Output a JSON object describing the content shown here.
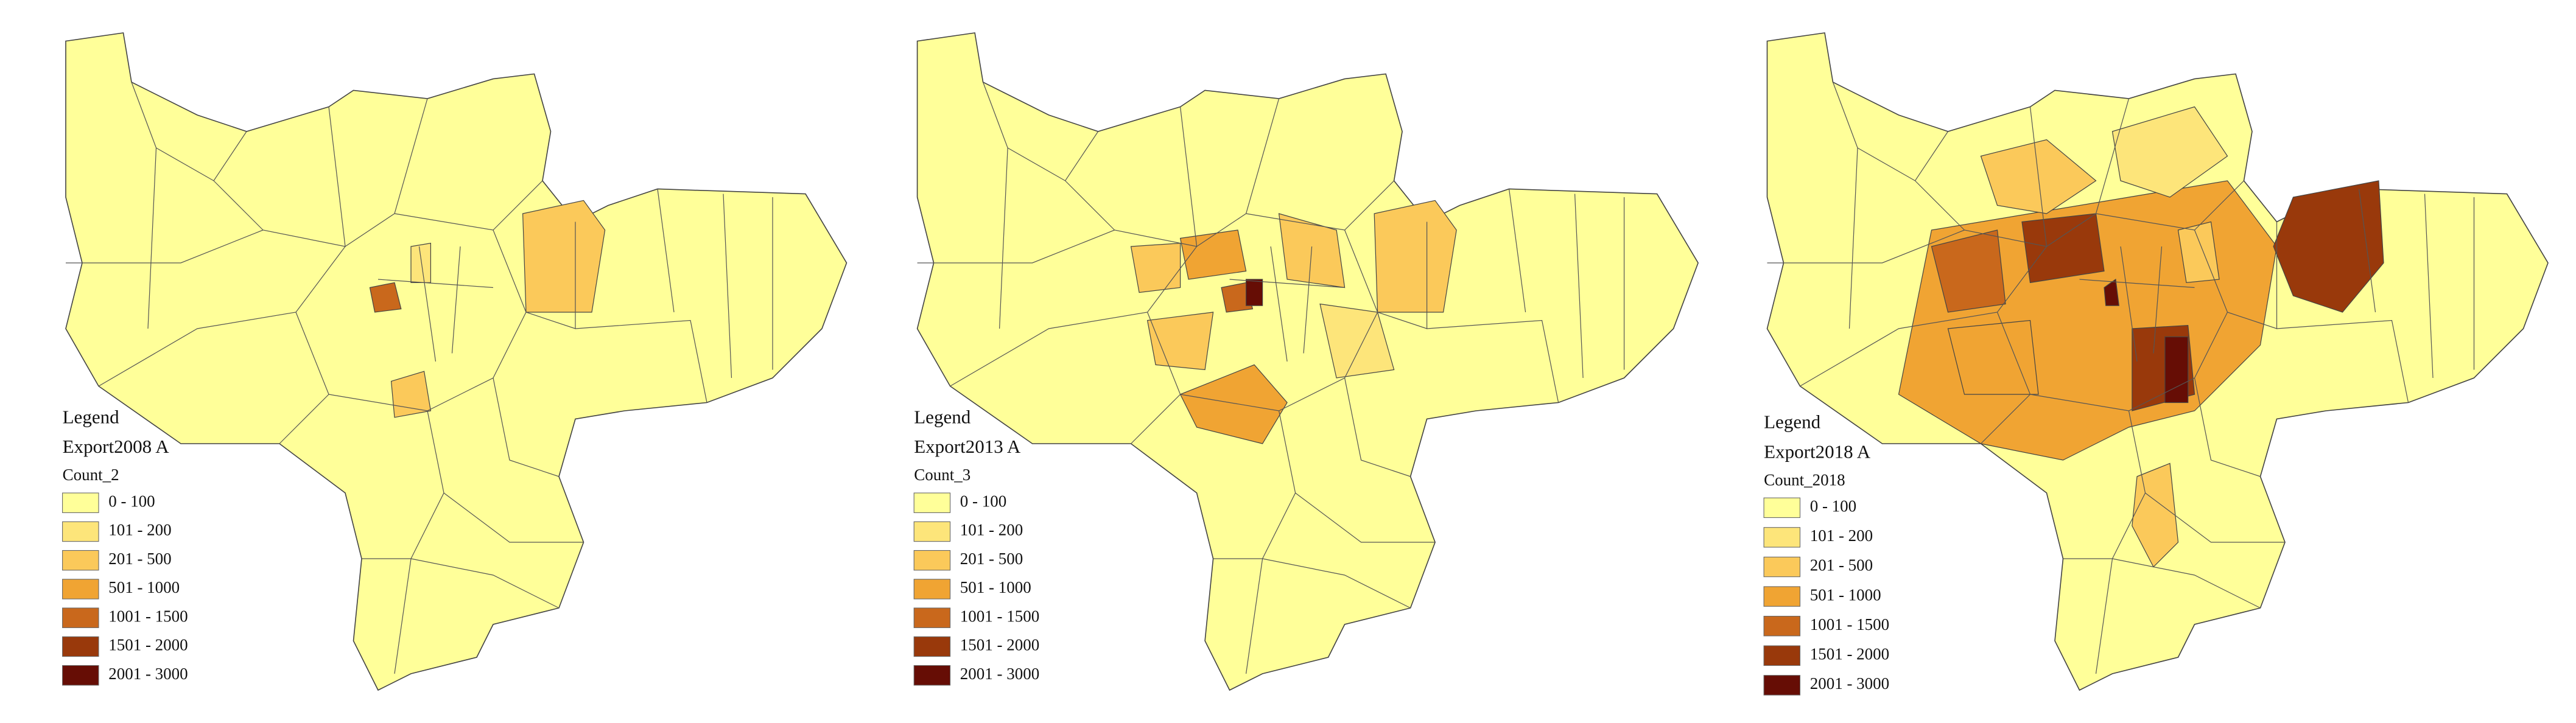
{
  "maps": [
    {
      "legend_title": "Legend",
      "layer": "Export2008 A",
      "field": "Count_2"
    },
    {
      "legend_title": "Legend",
      "layer": "Export2013 A",
      "field": "Count_3"
    },
    {
      "legend_title": "Legend",
      "layer": "Export2018 A",
      "field": "Count_2018"
    }
  ],
  "classes": [
    {
      "label": "0 - 100",
      "color": "#ffff99"
    },
    {
      "label": "101 - 200",
      "color": "#fde57a"
    },
    {
      "label": "201 - 500",
      "color": "#fbc95a"
    },
    {
      "label": "501 - 1000",
      "color": "#f0a433"
    },
    {
      "label": "1001 - 1500",
      "color": "#c9681c"
    },
    {
      "label": "1501 - 2000",
      "color": "#99390b"
    },
    {
      "label": "2001 - 3000",
      "color": "#660d05"
    }
  ]
}
